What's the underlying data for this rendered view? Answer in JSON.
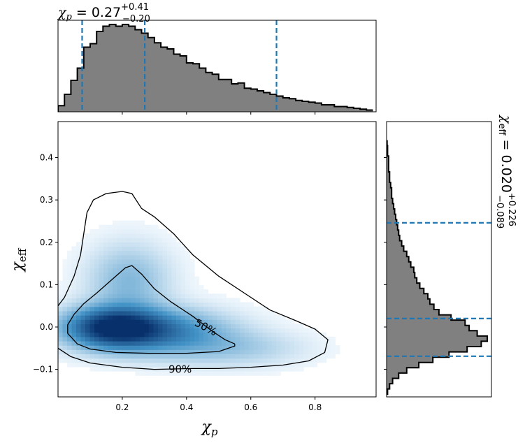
{
  "chart_data": [
    {
      "type": "heatmap",
      "panel": "joint",
      "xlabel": "χp",
      "ylabel": "χeff",
      "xlim": [
        0.0,
        0.99
      ],
      "ylim": [
        -0.165,
        0.485
      ],
      "xticks": [
        0.2,
        0.4,
        0.6,
        0.8
      ],
      "xtick_labels": [
        "0.2",
        "0.4",
        "0.6",
        "0.8"
      ],
      "yticks": [
        -0.1,
        0.0,
        0.1,
        0.2,
        0.3,
        0.4
      ],
      "ytick_labels": [
        "−0.1",
        "0.0",
        "0.1",
        "0.2",
        "0.3",
        "0.4"
      ],
      "colormap": "Blues",
      "density_peak": {
        "x": 0.17,
        "y": 0.0
      },
      "contours": [
        {
          "label": "50%",
          "label_pos": {
            "x": 0.46,
            "y": -0.001
          },
          "points": [
            [
              0.55,
              -0.04
            ],
            [
              0.52,
              -0.03
            ],
            [
              0.48,
              -0.01
            ],
            [
              0.42,
              0.025
            ],
            [
              0.35,
              0.06
            ],
            [
              0.3,
              0.09
            ],
            [
              0.26,
              0.125
            ],
            [
              0.23,
              0.145
            ],
            [
              0.21,
              0.14
            ],
            [
              0.18,
              0.12
            ],
            [
              0.15,
              0.1
            ],
            [
              0.12,
              0.08
            ],
            [
              0.08,
              0.055
            ],
            [
              0.05,
              0.03
            ],
            [
              0.03,
              0.005
            ],
            [
              0.03,
              -0.015
            ],
            [
              0.06,
              -0.04
            ],
            [
              0.1,
              -0.052
            ],
            [
              0.18,
              -0.06
            ],
            [
              0.28,
              -0.062
            ],
            [
              0.4,
              -0.062
            ],
            [
              0.5,
              -0.058
            ],
            [
              0.55,
              -0.045
            ],
            [
              0.55,
              -0.04
            ]
          ]
        },
        {
          "label": "90%",
          "label_pos": {
            "x": 0.38,
            "y": -0.1
          },
          "points": [
            [
              0.0,
              0.05
            ],
            [
              0.02,
              0.07
            ],
            [
              0.05,
              0.12
            ],
            [
              0.07,
              0.17
            ],
            [
              0.08,
              0.22
            ],
            [
              0.09,
              0.27
            ],
            [
              0.11,
              0.3
            ],
            [
              0.15,
              0.315
            ],
            [
              0.2,
              0.32
            ],
            [
              0.23,
              0.315
            ],
            [
              0.26,
              0.28
            ],
            [
              0.3,
              0.26
            ],
            [
              0.36,
              0.22
            ],
            [
              0.42,
              0.17
            ],
            [
              0.5,
              0.12
            ],
            [
              0.58,
              0.08
            ],
            [
              0.66,
              0.04
            ],
            [
              0.74,
              0.015
            ],
            [
              0.8,
              -0.005
            ],
            [
              0.84,
              -0.03
            ],
            [
              0.83,
              -0.06
            ],
            [
              0.78,
              -0.08
            ],
            [
              0.7,
              -0.09
            ],
            [
              0.6,
              -0.095
            ],
            [
              0.5,
              -0.098
            ],
            [
              0.42,
              -0.098
            ],
            [
              0.3,
              -0.1
            ],
            [
              0.2,
              -0.095
            ],
            [
              0.1,
              -0.085
            ],
            [
              0.04,
              -0.07
            ],
            [
              0.0,
              -0.05
            ]
          ]
        }
      ]
    },
    {
      "type": "bar",
      "panel": "top-marginal",
      "title": "χp = 0.27 +0.41 −0.20",
      "xlim": [
        0.0,
        0.99
      ],
      "bin_width": 0.02,
      "x": [
        0.01,
        0.03,
        0.05,
        0.07,
        0.09,
        0.11,
        0.13,
        0.15,
        0.17,
        0.19,
        0.21,
        0.23,
        0.25,
        0.27,
        0.29,
        0.31,
        0.33,
        0.35,
        0.37,
        0.39,
        0.41,
        0.43,
        0.45,
        0.47,
        0.49,
        0.51,
        0.53,
        0.55,
        0.57,
        0.59,
        0.61,
        0.63,
        0.65,
        0.67,
        0.69,
        0.71,
        0.73,
        0.75,
        0.77,
        0.79,
        0.81,
        0.83,
        0.85,
        0.87,
        0.89,
        0.91,
        0.93,
        0.95,
        0.97
      ],
      "values": [
        0.07,
        0.2,
        0.36,
        0.5,
        0.74,
        0.78,
        0.92,
        0.98,
        1.0,
        0.98,
        1.0,
        0.98,
        0.94,
        0.9,
        0.85,
        0.79,
        0.74,
        0.72,
        0.66,
        0.64,
        0.56,
        0.55,
        0.5,
        0.45,
        0.43,
        0.37,
        0.37,
        0.32,
        0.33,
        0.27,
        0.26,
        0.24,
        0.22,
        0.2,
        0.18,
        0.16,
        0.15,
        0.13,
        0.12,
        0.11,
        0.1,
        0.08,
        0.08,
        0.06,
        0.06,
        0.05,
        0.04,
        0.03,
        0.02
      ],
      "quantile_lines": [
        0.075,
        0.27,
        0.68
      ]
    },
    {
      "type": "bar",
      "panel": "right-marginal",
      "orientation": "horizontal",
      "title": "χeff = 0.020 +0.226 −0.089",
      "ylim": [
        -0.165,
        0.485
      ],
      "bin_width": 0.0125,
      "y": [
        -0.1525,
        -0.14,
        -0.1275,
        -0.115,
        -0.1025,
        -0.09,
        -0.0775,
        -0.065,
        -0.0525,
        -0.04,
        -0.0275,
        -0.015,
        -0.0025,
        0.01,
        0.0225,
        0.035,
        0.0475,
        0.06,
        0.0725,
        0.085,
        0.0975,
        0.11,
        0.1225,
        0.135,
        0.1475,
        0.16,
        0.1725,
        0.185,
        0.1975,
        0.21,
        0.2225,
        0.235,
        0.2475,
        0.26,
        0.2725,
        0.285,
        0.2975,
        0.31,
        0.3225,
        0.335,
        0.3475,
        0.36,
        0.3725,
        0.385,
        0.3975,
        0.41,
        0.4225,
        0.435
      ],
      "values": [
        0.01,
        0.03,
        0.06,
        0.12,
        0.2,
        0.32,
        0.46,
        0.62,
        0.8,
        0.94,
        1.0,
        0.9,
        0.82,
        0.78,
        0.64,
        0.52,
        0.47,
        0.43,
        0.41,
        0.37,
        0.33,
        0.3,
        0.28,
        0.27,
        0.24,
        0.22,
        0.2,
        0.17,
        0.15,
        0.13,
        0.12,
        0.11,
        0.1,
        0.09,
        0.08,
        0.07,
        0.06,
        0.05,
        0.05,
        0.04,
        0.03,
        0.03,
        0.02,
        0.02,
        0.02,
        0.01,
        0.01,
        0.005
      ],
      "quantile_lines": [
        -0.069,
        0.02,
        0.246
      ]
    }
  ],
  "labels": {
    "top_title_prefix": "χp = 0.27",
    "top_title_sup": "+0.41",
    "top_title_sub": "−0.20",
    "right_title": "χeff = 0.020",
    "right_title_sup": "+0.226",
    "right_title_sub": "−0.089",
    "xlabel_main": "χ",
    "xlabel_sub": "p",
    "ylabel_main": "χ",
    "ylabel_sub": "eff"
  },
  "colors": {
    "hist_fill": "#808080",
    "hist_edge": "#000000",
    "quantile_line": "#1f77b4",
    "contour": "#000000",
    "heat_low": "#f7fbff",
    "heat_high": "#08306b"
  }
}
